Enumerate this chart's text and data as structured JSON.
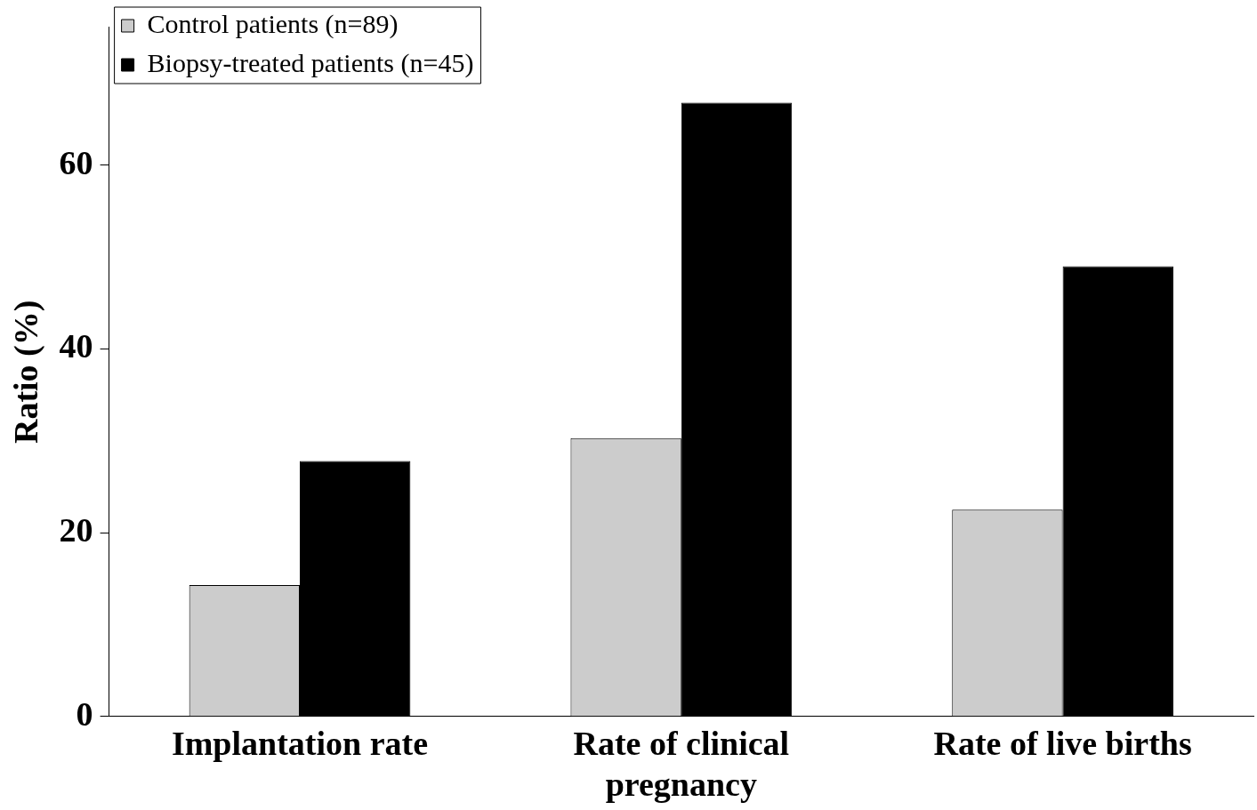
{
  "chart_data": {
    "type": "bar",
    "ylabel": "Ratio (%)",
    "categories": [
      "Implantation rate",
      "Rate of clinical pregnancy",
      "Rate of live births"
    ],
    "series": [
      {
        "name": "Control patients (n=89)",
        "color": "#cccccc",
        "values": [
          14.3,
          30.3,
          22.5
        ]
      },
      {
        "name": "Biopsy-treated patients (n=45)",
        "color": "#000000",
        "values": [
          27.8,
          66.8,
          49.0
        ]
      }
    ],
    "ylim": [
      0,
      75
    ],
    "yticks": [
      0,
      20,
      40,
      60
    ],
    "grid": false,
    "legend": "top left"
  }
}
